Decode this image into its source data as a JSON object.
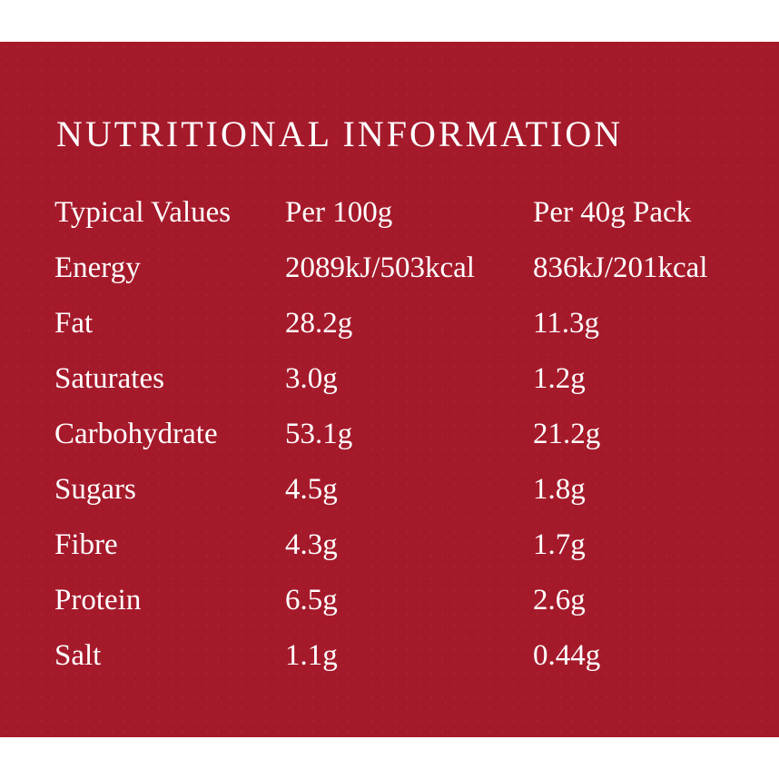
{
  "panel": {
    "background_color": "#a51a2b",
    "text_color": "#ffffff"
  },
  "title": "NUTRITIONAL INFORMATION",
  "header": {
    "label": "Typical Values",
    "per_100g": "Per 100g",
    "per_pack": "Per 40g Pack"
  },
  "rows": [
    {
      "label": "Energy",
      "per_100g": "2089kJ/503kcal",
      "per_pack": "836kJ/201kcal"
    },
    {
      "label": "Fat",
      "per_100g": "28.2g",
      "per_pack": "11.3g"
    },
    {
      "label": "Saturates",
      "per_100g": "3.0g",
      "per_pack": "1.2g"
    },
    {
      "label": "Carbohydrate",
      "per_100g": "53.1g",
      "per_pack": "21.2g"
    },
    {
      "label": "Sugars",
      "per_100g": "4.5g",
      "per_pack": "1.8g"
    },
    {
      "label": "Fibre",
      "per_100g": "4.3g",
      "per_pack": "1.7g"
    },
    {
      "label": "Protein",
      "per_100g": "6.5g",
      "per_pack": "2.6g"
    },
    {
      "label": "Salt",
      "per_100g": "1.1g",
      "per_pack": "0.44g"
    }
  ]
}
